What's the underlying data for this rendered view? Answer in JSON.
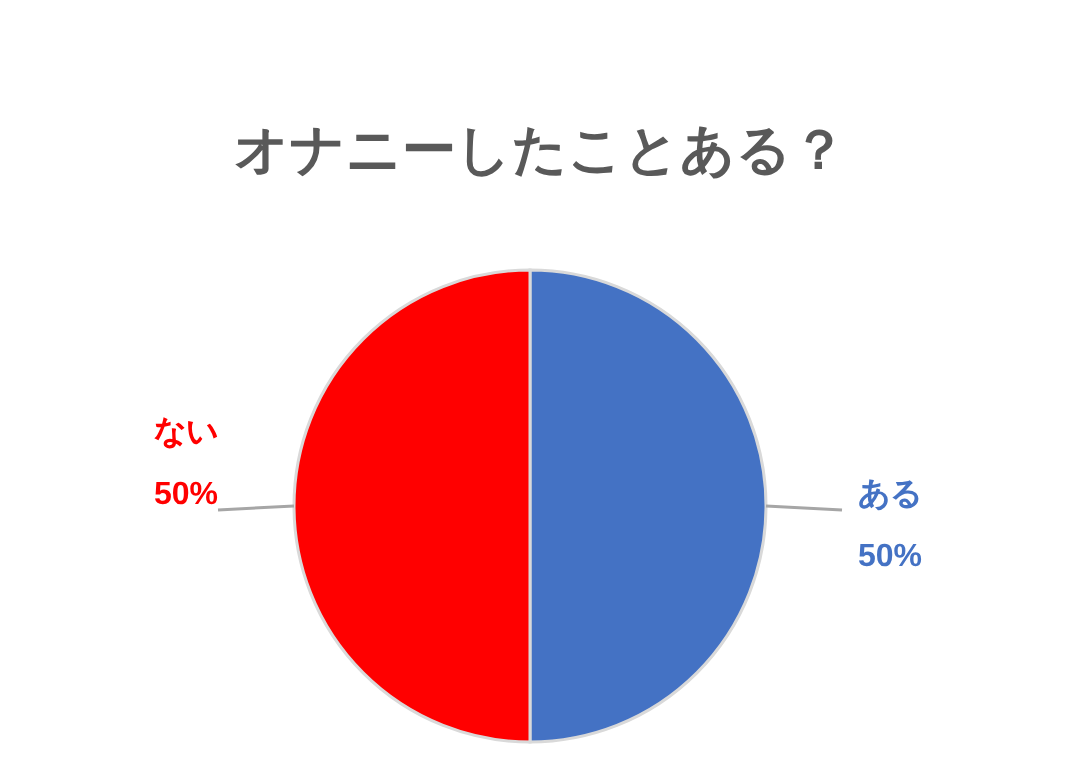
{
  "chart_data": {
    "type": "pie",
    "title": "オナニーしたことある？",
    "categories": [
      "ある",
      "ない"
    ],
    "values": [
      50,
      50
    ],
    "colors": [
      "#4472c4",
      "#ff0000"
    ],
    "value_labels": [
      "50%",
      "50%"
    ]
  }
}
